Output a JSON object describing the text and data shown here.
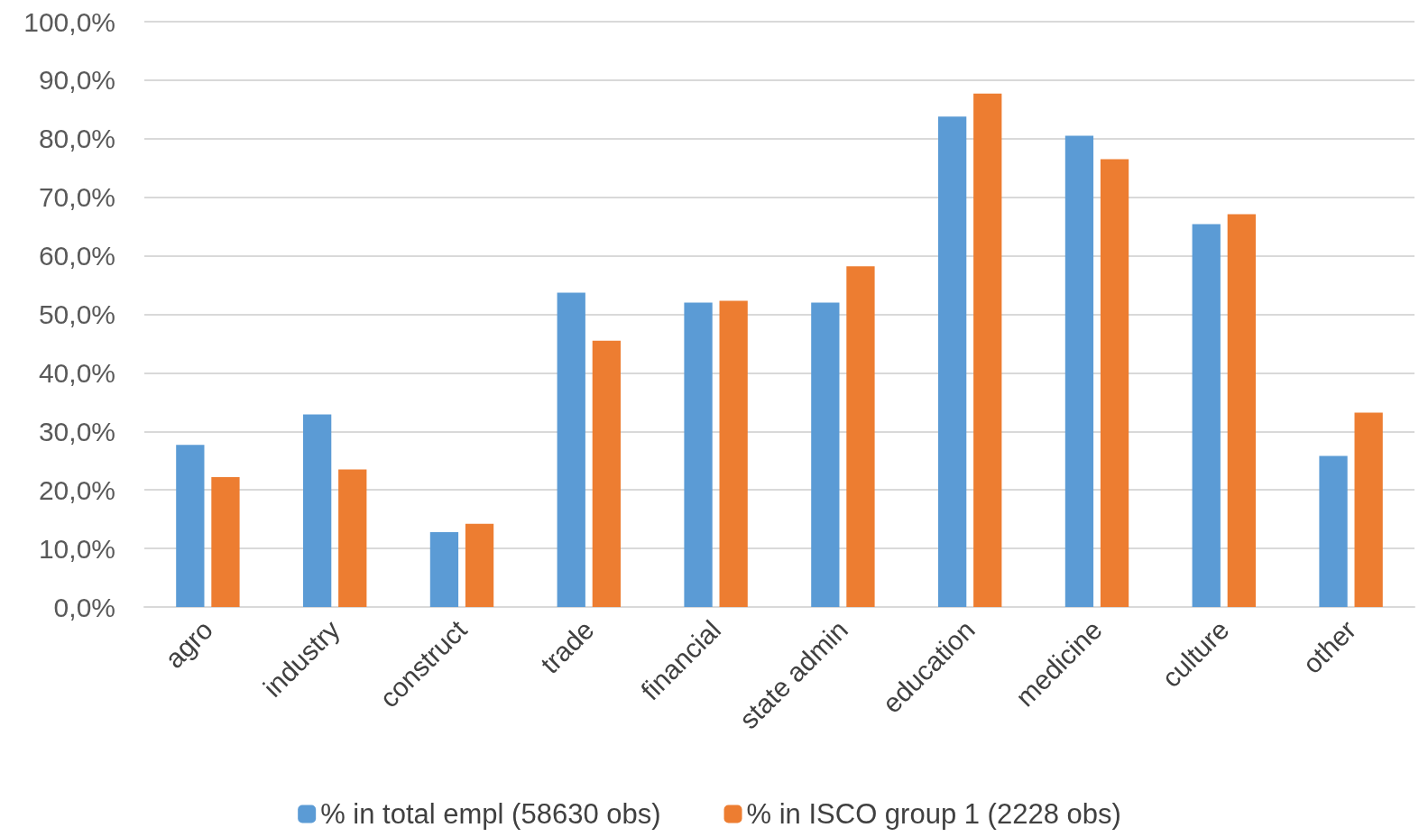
{
  "chart_data": {
    "type": "bar",
    "categories": [
      "agro",
      "industry",
      "construct",
      "trade",
      "financial",
      "state admin",
      "education",
      "medicine",
      "culture",
      "other"
    ],
    "series": [
      {
        "name": "% in total empl (58630 obs)",
        "color": "#5b9bd5",
        "values": [
          27.7,
          32.9,
          12.8,
          53.7,
          52.0,
          52.0,
          83.8,
          80.5,
          65.4,
          25.8
        ]
      },
      {
        "name": "% in ISCO group 1 (2228 obs)",
        "color": "#ed7d31",
        "values": [
          22.2,
          23.5,
          14.2,
          45.5,
          52.3,
          58.2,
          87.7,
          76.5,
          67.1,
          33.2
        ]
      }
    ],
    "ylim": [
      0,
      100
    ],
    "yticks": [
      {
        "value": 0,
        "label": "0,0%"
      },
      {
        "value": 10,
        "label": "10,0%"
      },
      {
        "value": 20,
        "label": "20,0%"
      },
      {
        "value": 30,
        "label": "30,0%"
      },
      {
        "value": 40,
        "label": "40,0%"
      },
      {
        "value": 50,
        "label": "50,0%"
      },
      {
        "value": 60,
        "label": "60,0%"
      },
      {
        "value": 70,
        "label": "70,0%"
      },
      {
        "value": 80,
        "label": "80,0%"
      },
      {
        "value": 90,
        "label": "90,0%"
      },
      {
        "value": 100,
        "label": "100,0%"
      }
    ],
    "grid": "y",
    "legend": "bottom"
  }
}
